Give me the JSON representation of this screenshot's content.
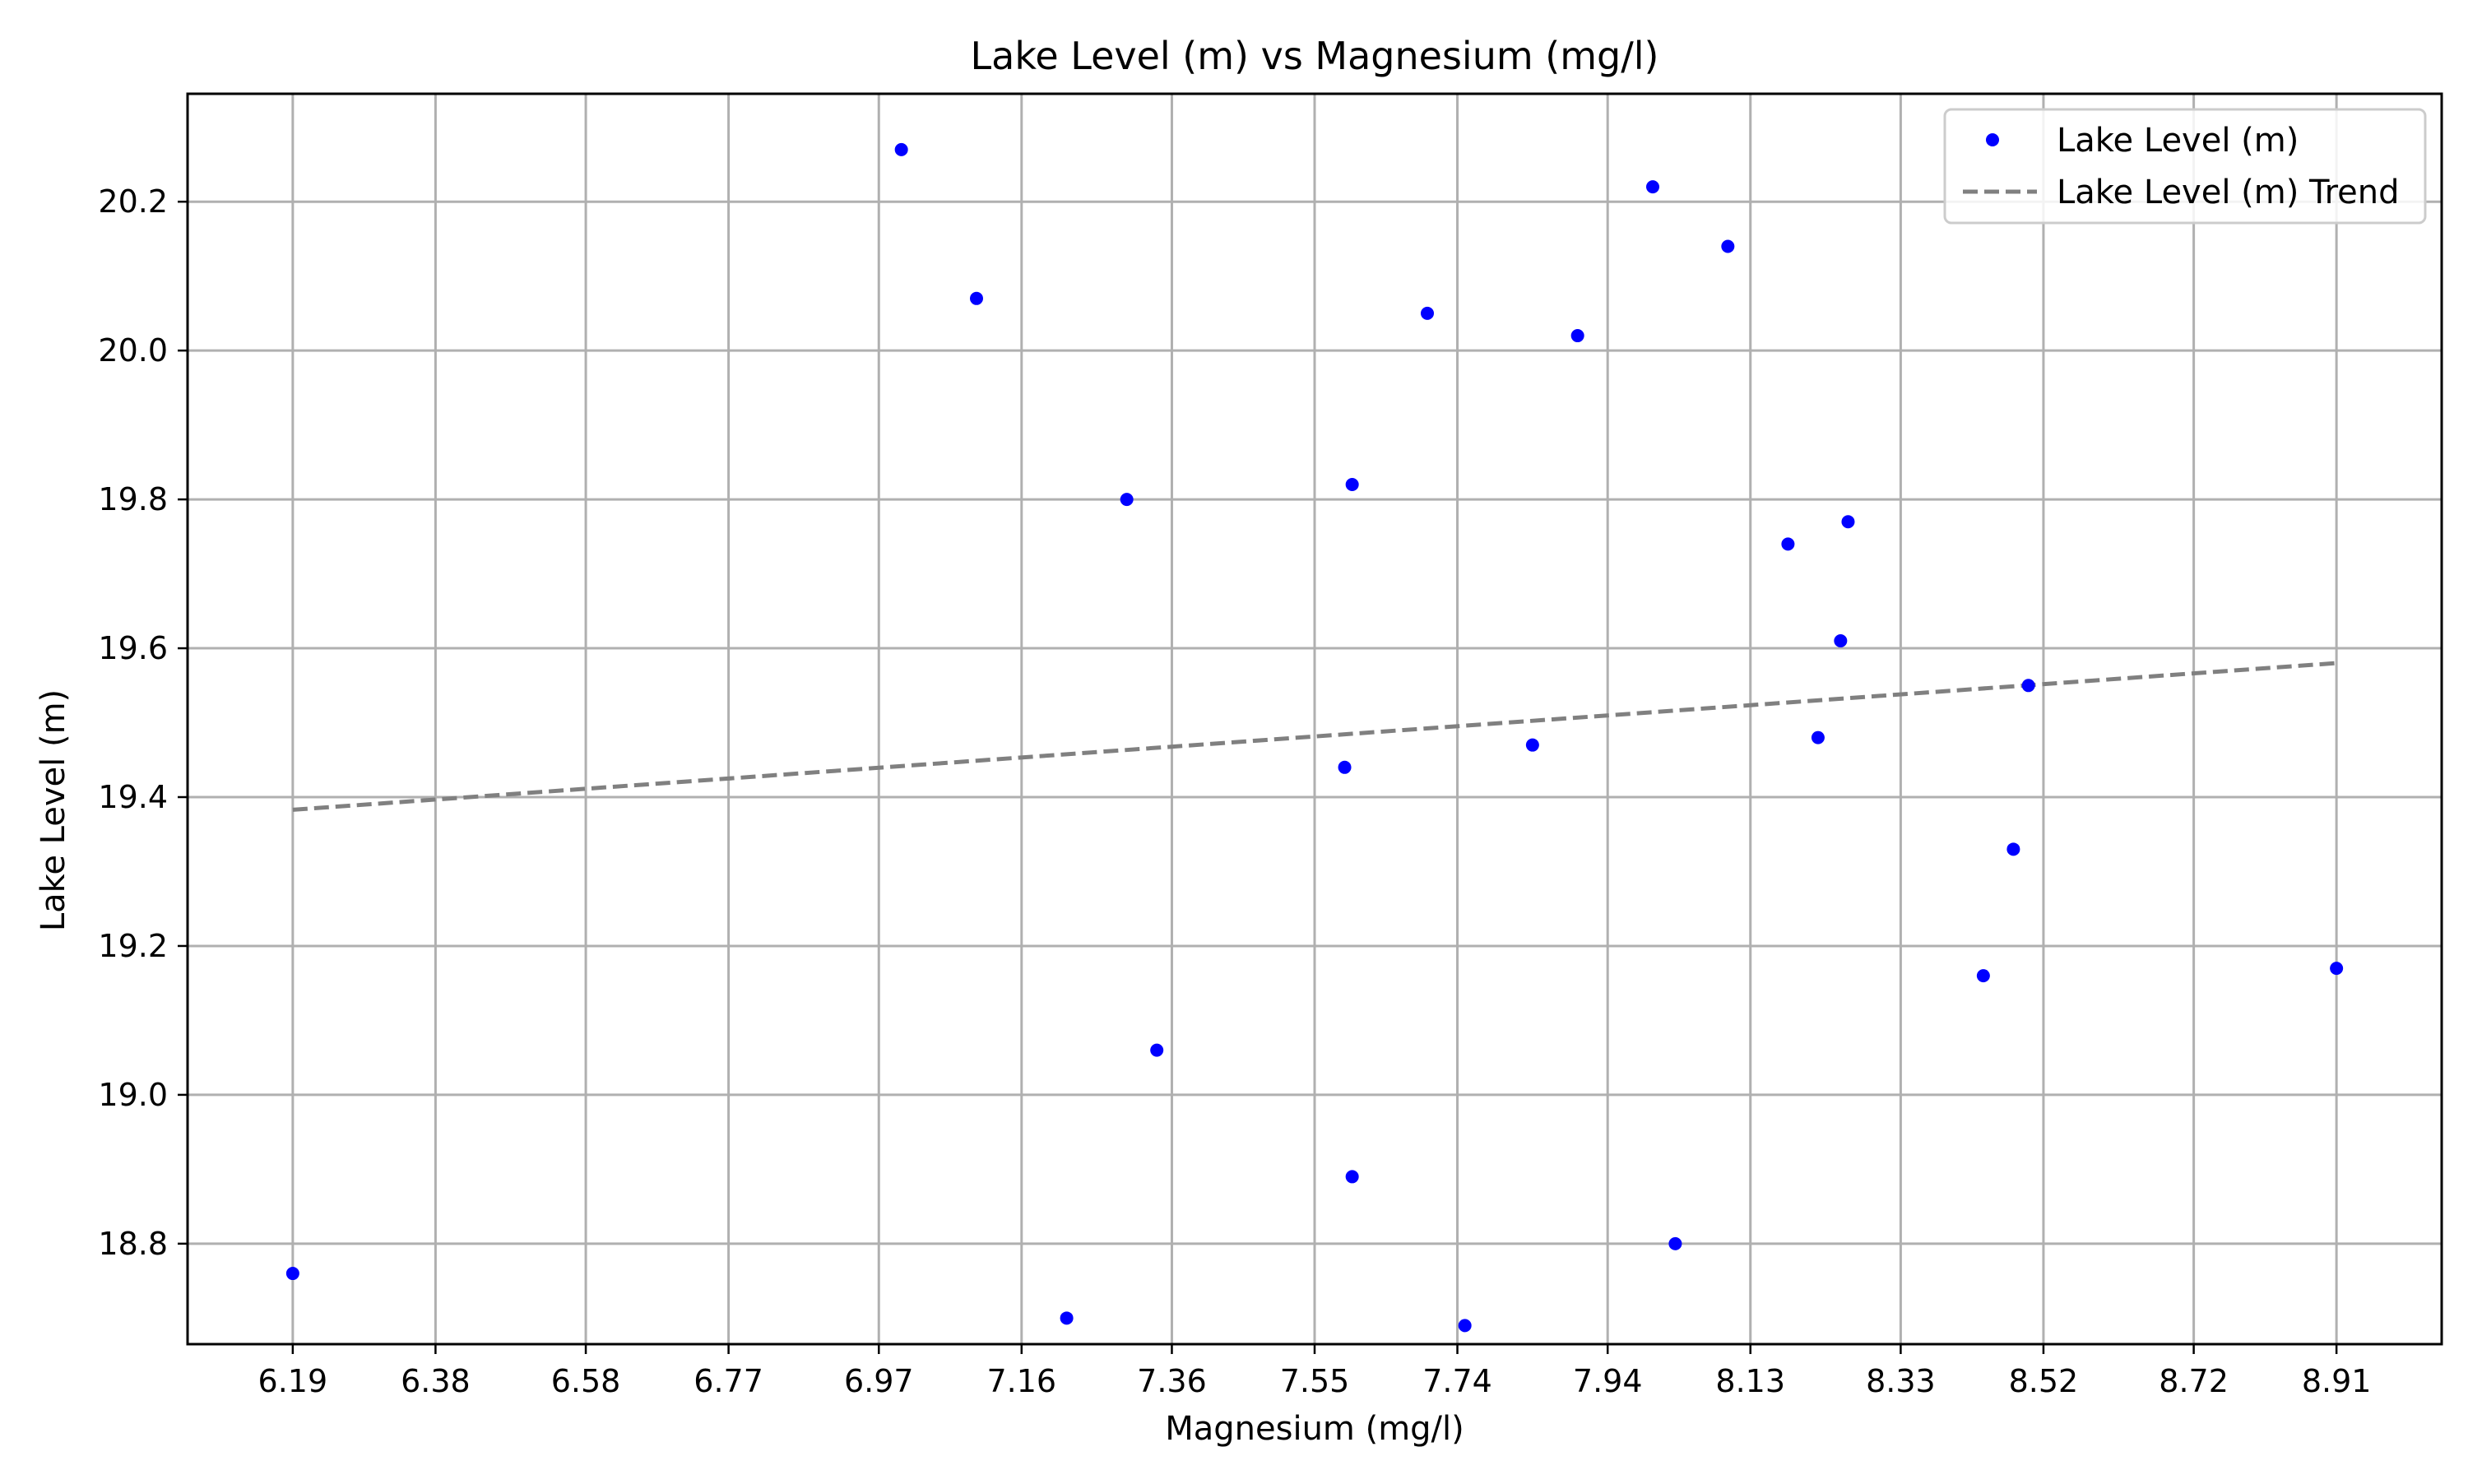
{
  "chart_data": {
    "type": "scatter",
    "title": "Lake Level (m) vs Magnesium (mg/l)",
    "xlabel": "Magnesium (mg/l)",
    "ylabel": "Lake Level (m)",
    "xlim": [
      6.05,
      9.05
    ],
    "ylim": [
      18.665,
      20.345
    ],
    "xticks": [
      6.19,
      6.38,
      6.58,
      6.77,
      6.97,
      7.16,
      7.36,
      7.55,
      7.74,
      7.94,
      8.13,
      8.33,
      8.52,
      8.72,
      8.91
    ],
    "xtick_labels": [
      "6.19",
      "6.38",
      "6.58",
      "6.77",
      "6.97",
      "7.16",
      "7.36",
      "7.55",
      "7.74",
      "7.94",
      "8.13",
      "8.33",
      "8.52",
      "8.72",
      "8.91"
    ],
    "yticks": [
      18.8,
      19.0,
      19.2,
      19.4,
      19.6,
      19.8,
      20.0,
      20.2
    ],
    "ytick_labels": [
      "18.8",
      "19.0",
      "19.2",
      "19.4",
      "19.6",
      "19.8",
      "20.0",
      "20.2"
    ],
    "grid": true,
    "legend_position": "top-right",
    "series": [
      {
        "name": "Lake Level (m)",
        "kind": "scatter",
        "color": "#0000ff",
        "x": [
          6.19,
          7.0,
          7.1,
          7.22,
          7.3,
          7.34,
          7.59,
          7.6,
          7.6,
          7.7,
          7.75,
          7.84,
          7.9,
          8.0,
          8.03,
          8.1,
          8.18,
          8.22,
          8.25,
          8.26,
          8.44,
          8.48,
          8.5,
          8.91
        ],
        "y": [
          18.76,
          20.27,
          20.07,
          18.7,
          19.8,
          19.06,
          19.44,
          18.89,
          19.82,
          20.05,
          18.69,
          19.47,
          20.02,
          20.22,
          18.8,
          20.14,
          19.74,
          19.48,
          19.61,
          19.77,
          19.16,
          19.33,
          19.55,
          19.17
        ]
      },
      {
        "name": "Lake Level (m) Trend",
        "kind": "line",
        "style": "dashed",
        "color": "#808080",
        "x": [
          6.19,
          8.91
        ],
        "y": [
          19.383,
          19.58
        ]
      }
    ]
  }
}
